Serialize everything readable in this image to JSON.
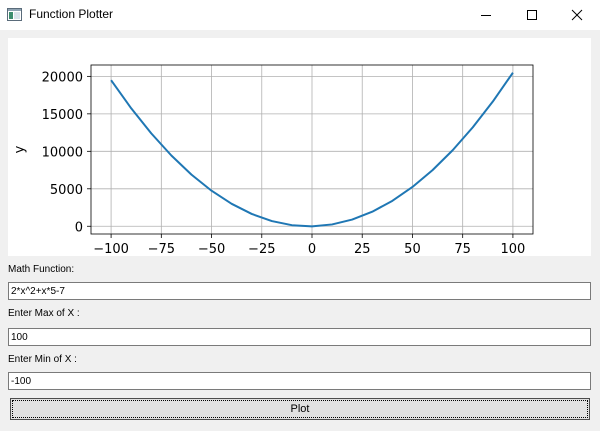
{
  "window": {
    "title": "Function Plotter",
    "icon": "window-app-icon",
    "controls": [
      "minimize-icon",
      "maximize-icon",
      "close-icon"
    ]
  },
  "chart_data": {
    "type": "line",
    "function": "2*x^2+x*5-7",
    "x": [
      -100,
      -90,
      -80,
      -70,
      -60,
      -50,
      -40,
      -30,
      -20,
      -10,
      0,
      10,
      20,
      30,
      40,
      50,
      60,
      70,
      80,
      90,
      100
    ],
    "y": [
      19493,
      15743,
      12393,
      9443,
      6893,
      4743,
      2993,
      1643,
      693,
      143,
      -7,
      243,
      893,
      1943,
      3393,
      5243,
      7493,
      10143,
      13193,
      16643,
      20493
    ],
    "series": [
      {
        "color": "#1f77b4"
      }
    ],
    "xlim": [
      -110,
      110
    ],
    "ylim": [
      -1032,
      21517
    ],
    "xticks": [
      -100,
      -75,
      -50,
      -25,
      0,
      25,
      50,
      75,
      100
    ],
    "xtick_labels": [
      "−100",
      "−75",
      "−50",
      "−25",
      "0",
      "25",
      "50",
      "75",
      "100"
    ],
    "yticks": [
      0,
      5000,
      10000,
      15000,
      20000
    ],
    "ytick_labels": [
      "0",
      "5000",
      "10000",
      "15000",
      "20000"
    ],
    "xlabel": "",
    "ylabel": "y",
    "grid": true
  },
  "form": {
    "function_label": "Math Function:",
    "function_value": "2*x^2+x*5-7",
    "max_label": "Enter Max of X :",
    "max_value": "100",
    "min_label": "Enter Min of X :",
    "min_value": "-100",
    "plot_button": "Plot"
  }
}
